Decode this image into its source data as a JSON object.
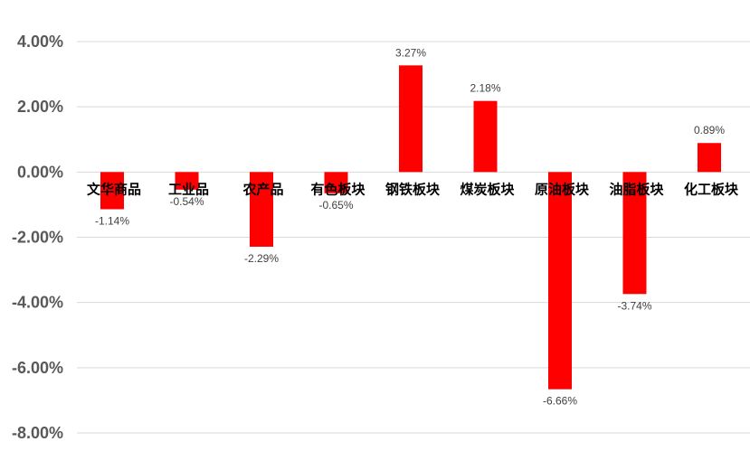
{
  "chart_data": {
    "type": "bar",
    "title": "",
    "xlabel": "",
    "ylabel": "",
    "categories": [
      "文华商品",
      "工业品",
      "农产品",
      "有色板块",
      "钢铁板块",
      "煤炭板块",
      "原油板块",
      "油脂板块",
      "化工板块"
    ],
    "values": [
      -1.14,
      -0.54,
      -2.29,
      -0.65,
      3.27,
      2.18,
      -6.66,
      -3.74,
      0.89
    ],
    "data_labels": [
      "-1.14%",
      "-0.54%",
      "-2.29%",
      "-0.65%",
      "3.27%",
      "2.18%",
      "-6.66%",
      "-3.74%",
      "0.89%"
    ],
    "ylim": [
      -8,
      4
    ],
    "yticks": [
      4,
      2,
      0,
      -2,
      -4,
      -6,
      -8
    ],
    "ytick_labels": [
      "4.00%",
      "2.00%",
      "0.00%",
      "-2.00%",
      "-4.00%",
      "-6.00%",
      "-8.00%"
    ],
    "grid": true,
    "legend": "none",
    "colors": {
      "bar": "#ff0000",
      "grid": "#d9d9d9",
      "tick_text": "#595959",
      "category_text": "#000000",
      "data_label_text": "#404040"
    }
  }
}
